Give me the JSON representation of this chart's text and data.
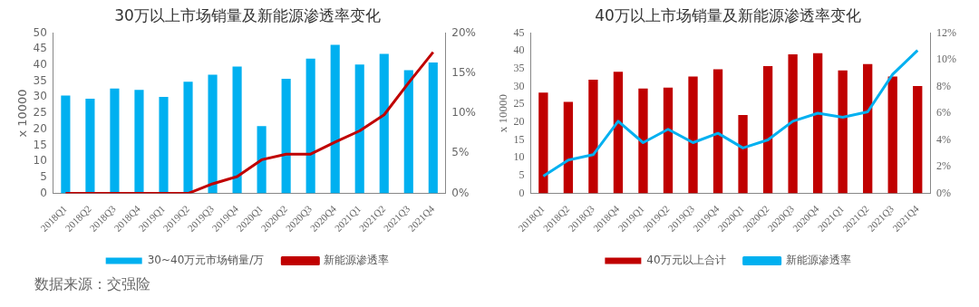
{
  "chart_data": [
    {
      "type": "bar",
      "title": "30万以上市场销量及新能源渗透率变化",
      "ylabel": "x 10000",
      "categories": [
        "2018Q1",
        "2018Q2",
        "2018Q3",
        "2018Q4",
        "2019Q1",
        "2019Q2",
        "2019Q3",
        "2019Q4",
        "2020Q1",
        "2020Q2",
        "2020Q3",
        "2020Q4",
        "2021Q1",
        "2021Q2",
        "2021Q3",
        "2021Q4"
      ],
      "series": [
        {
          "name": "30~40万元市场销量/万",
          "color": "#00b0f0",
          "values": [
            30.5,
            29.5,
            32.7,
            32.3,
            30.1,
            34.8,
            37,
            39.5,
            21,
            35.7,
            42,
            46.3,
            40.2,
            43.5,
            38.4,
            40.8
          ]
        },
        {
          "name": "新能源渗透率",
          "type": "line",
          "axis": "y2",
          "color": "#c00000",
          "values": [
            0,
            0,
            0,
            0,
            0,
            0,
            1.2,
            2.1,
            4.2,
            4.9,
            4.9,
            6.4,
            7.8,
            9.8,
            13.8,
            17.6
          ]
        }
      ],
      "ylim": [
        0,
        50
      ],
      "yticks": [
        0,
        5,
        10,
        15,
        20,
        25,
        30,
        35,
        40,
        45,
        50
      ],
      "y2lim": [
        0,
        20
      ],
      "y2ticks": [
        {
          "value": 0,
          "label": "0%"
        },
        {
          "value": 5,
          "label": "5%"
        },
        {
          "value": 10,
          "label": "10%"
        },
        {
          "value": 15,
          "label": "15%"
        },
        {
          "value": 20,
          "label": "20%"
        }
      ],
      "legend": "bottom",
      "grid": false,
      "marker": "none",
      "annotations": [
        "数据来源：交强险"
      ]
    },
    {
      "type": "bar",
      "title": "40万以上市场销量及新能源渗透率变化",
      "ylabel": "x 10000",
      "categories": [
        "2018Q1",
        "2018Q2",
        "2018Q3",
        "2018Q4",
        "2019Q1",
        "2019Q2",
        "2019Q3",
        "2019Q4",
        "2020Q1",
        "2020Q2",
        "2020Q3",
        "2020Q4",
        "2021Q1",
        "2021Q2",
        "2021Q3",
        "2021Q4"
      ],
      "series": [
        {
          "name": "40万元以上合计",
          "color": "#c00000",
          "values": [
            28.3,
            25.7,
            31.9,
            34.1,
            29.4,
            29.7,
            32.8,
            34.8,
            22,
            35.7,
            39,
            39.3,
            34.5,
            36.3,
            32.8,
            30.1
          ]
        },
        {
          "name": "新能源渗透率",
          "type": "line",
          "axis": "y2",
          "color": "#00b0f0",
          "values": [
            1.3,
            2.5,
            2.9,
            5.4,
            3.8,
            4.8,
            3.8,
            4.5,
            3.4,
            4.0,
            5.4,
            6.0,
            5.7,
            6.1,
            8.9,
            10.7
          ]
        }
      ],
      "ylim": [
        0,
        45
      ],
      "yticks": [
        0,
        5,
        10,
        15,
        20,
        25,
        30,
        35,
        40,
        45
      ],
      "y2lim": [
        0,
        12
      ],
      "y2ticks": [
        {
          "value": 0,
          "label": "0%"
        },
        {
          "value": 2,
          "label": "2%"
        },
        {
          "value": 4,
          "label": "4%"
        },
        {
          "value": 6,
          "label": "6%"
        },
        {
          "value": 8,
          "label": "8%"
        },
        {
          "value": 10,
          "label": "10%"
        },
        {
          "value": 12,
          "label": "12%"
        }
      ],
      "legend": "bottom",
      "grid": false,
      "marker": "none"
    }
  ]
}
